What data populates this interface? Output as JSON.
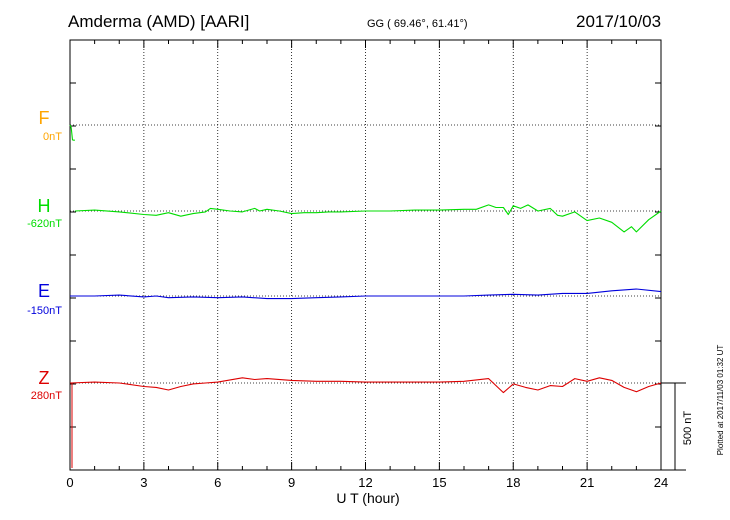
{
  "header": {
    "station": "Amderma (AMD)  [AARI]",
    "coords": "GG ( 69.46°,  61.41°)",
    "date": "2017/10/03"
  },
  "footer": {
    "plotted": "Plotted at 2017/11/03 01:32 UT"
  },
  "chart_data": {
    "type": "line",
    "xlabel": "U T (hour)",
    "xlim": [
      0,
      24
    ],
    "xticks": [
      "0",
      "3",
      "6",
      "9",
      "12",
      "15",
      "18",
      "21",
      "24"
    ],
    "grid": true,
    "scale_bar": {
      "label": "500 nT",
      "value_nT": 500
    },
    "series": [
      {
        "name": "F",
        "baseline": "0nT",
        "color": "#ffa500",
        "label_color": "#ffa500",
        "line_color": "#00dd00",
        "x": [
          0.0,
          0.05,
          0.1,
          0.15,
          0.2
        ],
        "y": [
          0,
          -160,
          -900,
          -920,
          -920
        ]
      },
      {
        "name": "H",
        "baseline": "-620nT",
        "color": "#00dd00",
        "label_color": "#00dd00",
        "line_color": "#00dd00",
        "x": [
          0.2,
          1,
          2,
          3,
          3.5,
          4,
          4.5,
          5,
          5.5,
          5.7,
          6,
          6.5,
          7,
          7.5,
          7.7,
          8,
          8.5,
          9,
          9.5,
          10,
          10.5,
          11,
          12,
          13,
          14,
          15,
          16,
          16.5,
          17,
          17.3,
          17.6,
          17.8,
          18,
          18.3,
          18.6,
          19,
          19.5,
          19.8,
          20,
          20.5,
          21,
          21.5,
          22,
          22.5,
          22.8,
          23,
          23.5,
          24
        ],
        "y": [
          0,
          5,
          -5,
          -20,
          -25,
          -10,
          -30,
          -15,
          -5,
          15,
          10,
          0,
          -5,
          15,
          0,
          10,
          0,
          -15,
          -10,
          -10,
          -5,
          -5,
          0,
          0,
          5,
          5,
          10,
          10,
          35,
          20,
          20,
          -20,
          30,
          15,
          35,
          0,
          15,
          -25,
          -30,
          -5,
          -55,
          -40,
          -65,
          -120,
          -90,
          -120,
          -50,
          0
        ]
      },
      {
        "name": "E",
        "baseline": "-150nT",
        "color": "#0000dd",
        "label_color": "#0000dd",
        "line_color": "#0000dd",
        "x": [
          0,
          1,
          2,
          3,
          3.5,
          4,
          5,
          6,
          7,
          8,
          9,
          10,
          11,
          12,
          13,
          14,
          15,
          16,
          17,
          18,
          19,
          20,
          21,
          22,
          23,
          24
        ],
        "y": [
          0,
          0,
          5,
          -5,
          0,
          -10,
          -5,
          -10,
          -5,
          -15,
          -15,
          -10,
          -5,
          0,
          0,
          0,
          0,
          0,
          5,
          10,
          5,
          15,
          15,
          30,
          40,
          25
        ]
      },
      {
        "name": "Z",
        "baseline": "280nT",
        "color": "#dd0000",
        "label_color": "#dd0000",
        "line_color": "#dd0000",
        "x": [
          0,
          1,
          2,
          3,
          3.5,
          4,
          4.5,
          5,
          5.5,
          6,
          7,
          7.5,
          8,
          9,
          10,
          11,
          12,
          13,
          14,
          15,
          16,
          17,
          17.3,
          17.6,
          18,
          18.5,
          19,
          19.5,
          20,
          20.5,
          21,
          21.5,
          22,
          22.5,
          23,
          23.5,
          24
        ],
        "y": [
          0,
          5,
          0,
          -20,
          -25,
          -40,
          -20,
          -5,
          0,
          5,
          30,
          20,
          25,
          15,
          10,
          10,
          5,
          5,
          5,
          5,
          10,
          25,
          -15,
          -55,
          -5,
          -25,
          -40,
          -15,
          -20,
          25,
          10,
          30,
          15,
          -25,
          -50,
          -20,
          0
        ]
      }
    ]
  }
}
